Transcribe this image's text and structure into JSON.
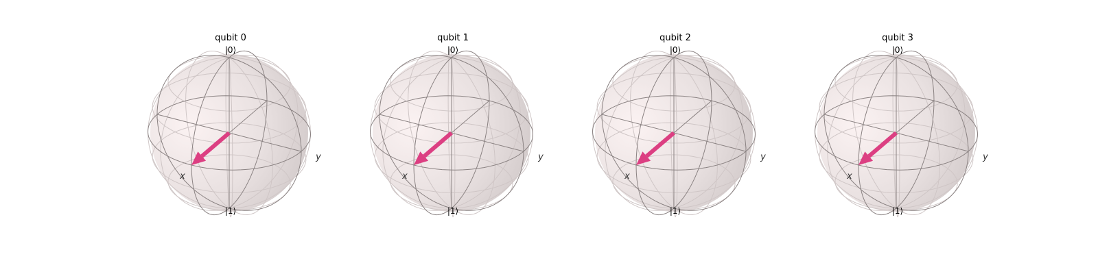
{
  "colors": {
    "sphere_fill": "#e8dede",
    "sphere_highlight": "#fbf1f1",
    "wire": "#8a8282",
    "faint_wire": "#cfc6c6",
    "vector": "#dc3f82"
  },
  "spheres": [
    {
      "title": "qubit 0",
      "top_label": "|0⟩",
      "bottom_label": "|1⟩",
      "x_label": "x",
      "y_label": "y",
      "state": [
        1,
        0,
        0
      ]
    },
    {
      "title": "qubit 1",
      "top_label": "|0⟩",
      "bottom_label": "|1⟩",
      "x_label": "x",
      "y_label": "y",
      "state": [
        1,
        0,
        0
      ]
    },
    {
      "title": "qubit 2",
      "top_label": "|0⟩",
      "bottom_label": "|1⟩",
      "x_label": "x",
      "y_label": "y",
      "state": [
        1,
        0,
        0
      ]
    },
    {
      "title": "qubit 3",
      "top_label": "|0⟩",
      "bottom_label": "|1⟩",
      "x_label": "x",
      "y_label": "y",
      "state": [
        1,
        0,
        0
      ]
    }
  ]
}
